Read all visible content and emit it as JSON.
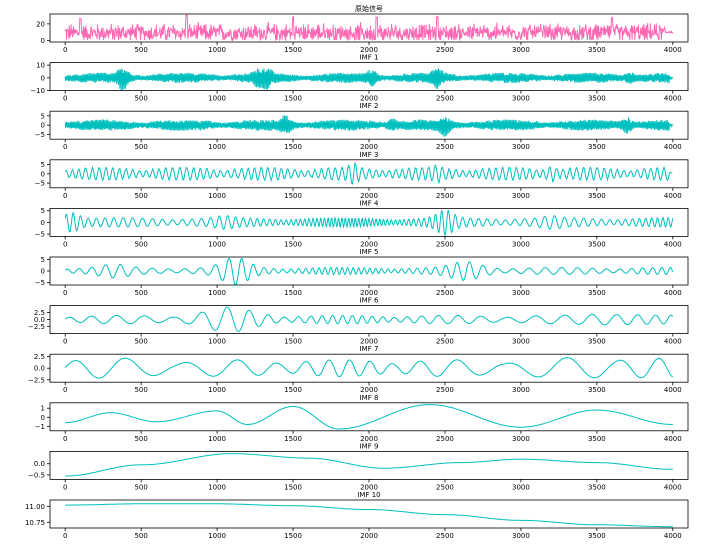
{
  "chart_data": [
    {
      "type": "line",
      "title": "原始信号",
      "color": "#ff69b4",
      "xlim": [
        -100,
        4100
      ],
      "ylim": [
        -2,
        32
      ],
      "xticks": [
        0,
        500,
        1000,
        1500,
        2000,
        2500,
        3000,
        3500,
        4000
      ],
      "yticks": [
        0,
        20
      ],
      "ytick_labels": [
        "0",
        "20"
      ],
      "x": [
        0,
        4000
      ],
      "series": [
        {
          "kind": "noise",
          "amplitude": 9,
          "offset": 9,
          "peaks": [
            [
              100,
              28
            ],
            [
              800,
              32
            ],
            [
              1500,
              30
            ],
            [
              2050,
              30
            ],
            [
              2450,
              29
            ],
            [
              3600,
              29
            ]
          ],
          "tail_value": 10
        }
      ]
    },
    {
      "type": "line",
      "title": "IMF 1",
      "color": "#00bfbf",
      "xlim": [
        -100,
        4100
      ],
      "ylim": [
        -10,
        12
      ],
      "xticks": [
        0,
        500,
        1000,
        1500,
        2000,
        2500,
        3000,
        3500,
        4000
      ],
      "yticks": [
        -10,
        0,
        10
      ],
      "ytick_labels": [
        "−10",
        "0",
        "10"
      ],
      "x": [
        0,
        4000
      ],
      "series": [
        {
          "kind": "hf",
          "amplitude": 4,
          "peaks": [
            [
              380,
              11
            ],
            [
              1270,
              8
            ],
            [
              1330,
              -9
            ],
            [
              2020,
              8
            ],
            [
              2450,
              9
            ],
            [
              3720,
              7
            ]
          ]
        }
      ]
    },
    {
      "type": "line",
      "title": "IMF 2",
      "color": "#00bfbf",
      "xlim": [
        -100,
        4100
      ],
      "ylim": [
        -7.5,
        7.5
      ],
      "xticks": [
        0,
        500,
        1000,
        1500,
        2000,
        2500,
        3000,
        3500,
        4000
      ],
      "yticks": [
        -5,
        0,
        5
      ],
      "ytick_labels": [
        "−5",
        "0",
        "5"
      ],
      "x": [
        0,
        4000
      ],
      "series": [
        {
          "kind": "hf",
          "amplitude": 3,
          "peaks": [
            [
              1450,
              6
            ],
            [
              2150,
              5
            ],
            [
              2500,
              6.5
            ],
            [
              3700,
              6
            ]
          ]
        }
      ]
    },
    {
      "type": "line",
      "title": "IMF 3",
      "color": "#00bfbf",
      "xlim": [
        -100,
        4100
      ],
      "ylim": [
        -7.5,
        7.5
      ],
      "xticks": [
        0,
        500,
        1000,
        1500,
        2000,
        2500,
        3000,
        3500,
        4000
      ],
      "yticks": [
        -5,
        0,
        5
      ],
      "ytick_labels": [
        "−5",
        "0",
        "5"
      ],
      "x": [
        0,
        4000
      ],
      "series": [
        {
          "kind": "mf",
          "amplitude": 3.5,
          "peaks": [
            [
              1900,
              6
            ],
            [
              2450,
              5
            ],
            [
              3200,
              6
            ]
          ]
        }
      ]
    },
    {
      "type": "line",
      "title": "IMF 4",
      "color": "#00bfbf",
      "xlim": [
        -100,
        4100
      ],
      "ylim": [
        -6,
        6
      ],
      "xticks": [
        0,
        500,
        1000,
        1500,
        2000,
        2500,
        3000,
        3500,
        4000
      ],
      "yticks": [
        -5,
        0,
        5
      ],
      "ytick_labels": [
        "−5",
        "0",
        "5"
      ],
      "x": [
        0,
        4000
      ],
      "series": [
        {
          "kind": "wave",
          "period": 55,
          "amplitude": 2,
          "bursts": [
            [
              40,
              5
            ],
            [
              2500,
              5.5
            ],
            [
              1050,
              3
            ],
            [
              3200,
              3
            ]
          ]
        }
      ]
    },
    {
      "type": "line",
      "title": "IMF 5",
      "color": "#00bfbf",
      "xlim": [
        -100,
        4100
      ],
      "ylim": [
        -6,
        6
      ],
      "xticks": [
        0,
        500,
        1000,
        1500,
        2000,
        2500,
        3000,
        3500,
        4000
      ],
      "yticks": [
        -5,
        0,
        5
      ],
      "ytick_labels": [
        "−5",
        "0",
        "5"
      ],
      "x": [
        0,
        4000
      ],
      "series": [
        {
          "kind": "wave",
          "period": 90,
          "amplitude": 1.5,
          "bursts": [
            [
              320,
              3
            ],
            [
              1120,
              6
            ],
            [
              2610,
              3.5
            ],
            [
              2700,
              2.5
            ]
          ]
        }
      ]
    },
    {
      "type": "line",
      "title": "IMF 6",
      "color": "#00bfbf",
      "xlim": [
        -100,
        4100
      ],
      "ylim": [
        -5,
        5
      ],
      "xticks": [
        0,
        500,
        1000,
        1500,
        2000,
        2500,
        3000,
        3500,
        4000
      ],
      "yticks": [
        -2.5,
        0,
        2.5
      ],
      "ytick_labels": [
        "−2.5",
        "0.0",
        "2.5"
      ],
      "x": [
        0,
        4000
      ],
      "series": [
        {
          "kind": "wave",
          "period": 160,
          "amplitude": 1.5,
          "bursts": [
            [
              1080,
              4.5
            ],
            [
              3600,
              2.5
            ]
          ]
        }
      ]
    },
    {
      "type": "line",
      "title": "IMF 7",
      "color": "#00bfbf",
      "xlim": [
        -100,
        4100
      ],
      "ylim": [
        -3,
        3
      ],
      "xticks": [
        0,
        500,
        1000,
        1500,
        2000,
        2500,
        3000,
        3500,
        4000
      ],
      "yticks": [
        -2.5,
        0,
        2.5
      ],
      "ytick_labels": [
        "−2.5",
        "0.0",
        "2.5"
      ],
      "x": [
        0,
        4000
      ],
      "series": [
        {
          "kind": "wave",
          "period": 330,
          "amplitude": 1.8,
          "bursts": [
            [
              160,
              2.3
            ],
            [
              3550,
              2.5
            ]
          ]
        }
      ]
    },
    {
      "type": "line",
      "title": "IMF 8",
      "color": "#00bfbf",
      "xlim": [
        -100,
        4100
      ],
      "ylim": [
        -1.5,
        1.6
      ],
      "xticks": [
        0,
        500,
        1000,
        1500,
        2000,
        2500,
        3000,
        3500,
        4000
      ],
      "yticks": [
        -1,
        0,
        1
      ],
      "ytick_labels": [
        "−1",
        "0",
        "1"
      ],
      "x": [
        0,
        4000
      ],
      "series": [
        {
          "kind": "points",
          "x": [
            0,
            300,
            600,
            1000,
            1200,
            1500,
            1800,
            2400,
            3000,
            3500,
            4000
          ],
          "y": [
            -0.6,
            0.5,
            -0.5,
            0.7,
            -0.8,
            1.2,
            -1.3,
            1.4,
            -1.1,
            0.8,
            -0.8
          ]
        }
      ]
    },
    {
      "type": "line",
      "title": "IMF 9",
      "color": "#00bfbf",
      "xlim": [
        -100,
        4100
      ],
      "ylim": [
        -0.7,
        0.55
      ],
      "xticks": [
        0,
        500,
        1000,
        1500,
        2000,
        2500,
        3000,
        3500,
        4000
      ],
      "yticks": [
        -0.5,
        0
      ],
      "ytick_labels": [
        "−0.5",
        "0.0"
      ],
      "x": [
        0,
        4000
      ],
      "series": [
        {
          "kind": "points",
          "x": [
            0,
            500,
            1100,
            1600,
            2100,
            2600,
            3000,
            3500,
            4000
          ],
          "y": [
            -0.55,
            -0.05,
            0.45,
            0.25,
            -0.2,
            0.05,
            0.2,
            0.05,
            -0.25
          ]
        }
      ]
    },
    {
      "type": "line",
      "title": "IMF 10",
      "color": "#00bfbf",
      "xlim": [
        -100,
        4100
      ],
      "ylim": [
        10.66,
        11.1
      ],
      "xticks": [
        0,
        500,
        1000,
        1500,
        2000,
        2500,
        3000,
        3500,
        4000
      ],
      "yticks": [
        10.75,
        11.0
      ],
      "ytick_labels": [
        "10.75",
        "11.00"
      ],
      "x": [
        0,
        4000
      ],
      "series": [
        {
          "kind": "points",
          "x": [
            0,
            500,
            1000,
            1500,
            2000,
            2500,
            3000,
            3500,
            4000
          ],
          "y": [
            11.02,
            11.04,
            11.04,
            11.01,
            10.95,
            10.87,
            10.78,
            10.71,
            10.68
          ]
        }
      ]
    }
  ]
}
